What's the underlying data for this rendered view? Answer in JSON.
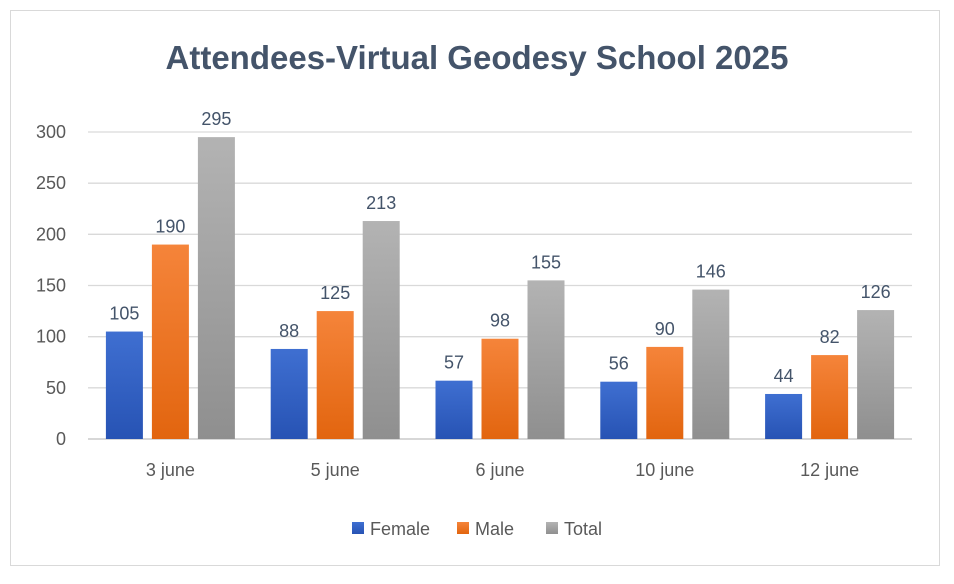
{
  "chart_data": {
    "type": "bar",
    "title": "Attendees-Virtual Geodesy School 2025",
    "categories": [
      "3 june",
      "5 june",
      "6 june",
      "10 june",
      "12 june"
    ],
    "series": [
      {
        "name": "Female",
        "values": [
          105,
          88,
          57,
          56,
          44
        ],
        "color": "#3f6fd1",
        "color_dark": "#2753b4"
      },
      {
        "name": "Male",
        "values": [
          190,
          125,
          98,
          90,
          82
        ],
        "color": "#f5843a",
        "color_dark": "#e2650f"
      },
      {
        "name": "Total",
        "values": [
          295,
          213,
          155,
          146,
          126
        ],
        "color": "#b3b3b3",
        "color_dark": "#8f8f8f"
      }
    ],
    "ylim": [
      0,
      300
    ],
    "yticks": [
      "0",
      "50",
      "100",
      "150",
      "200",
      "250",
      "300"
    ],
    "grid": true,
    "legend_position": "bottom",
    "data_labels": true
  }
}
